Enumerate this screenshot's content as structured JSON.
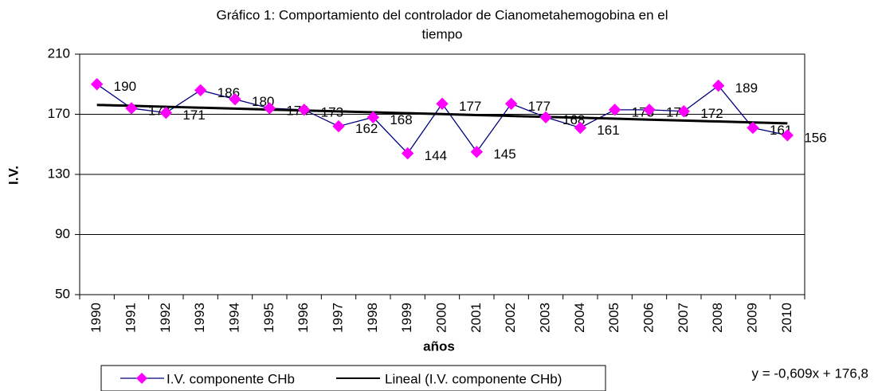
{
  "chart_data": {
    "type": "line",
    "title": [
      "Gráfico 1: Comportamiento del controlador de Cianometahemogobina en el",
      "tiempo"
    ],
    "x_label": "años",
    "y_label": "I.V.",
    "categories": [
      "1990",
      "1991",
      "1992",
      "1993",
      "1994",
      "1995",
      "1996",
      "1997",
      "1998",
      "1999",
      "2000",
      "2001",
      "2002",
      "2003",
      "2004",
      "2005",
      "2006",
      "2007",
      "2008",
      "2009",
      "2010"
    ],
    "series": [
      {
        "name": "I.V. componente CHb",
        "color": "#000080",
        "marker_color": "#ff00ff",
        "values": [
          190,
          174,
          171,
          186,
          180,
          174,
          173,
          162,
          168,
          144,
          177,
          145,
          177,
          168,
          161,
          173,
          173,
          172,
          189,
          161,
          156
        ]
      },
      {
        "name": "Lineal (I.V. componente CHb)",
        "color": "#000000",
        "values": [
          176.2,
          175.6,
          175.0,
          174.4,
          173.8,
          173.1,
          172.5,
          171.9,
          171.3,
          170.7,
          170.1,
          169.5,
          168.9,
          168.3,
          167.7,
          167.1,
          166.4,
          165.8,
          165.2,
          164.6,
          164.0
        ]
      }
    ],
    "trend_equation": "y = -0,609x + 176,8",
    "ylim": [
      50,
      210
    ],
    "yticks": [
      50,
      90,
      130,
      170,
      210
    ],
    "grid": true,
    "legend": "bottom"
  }
}
